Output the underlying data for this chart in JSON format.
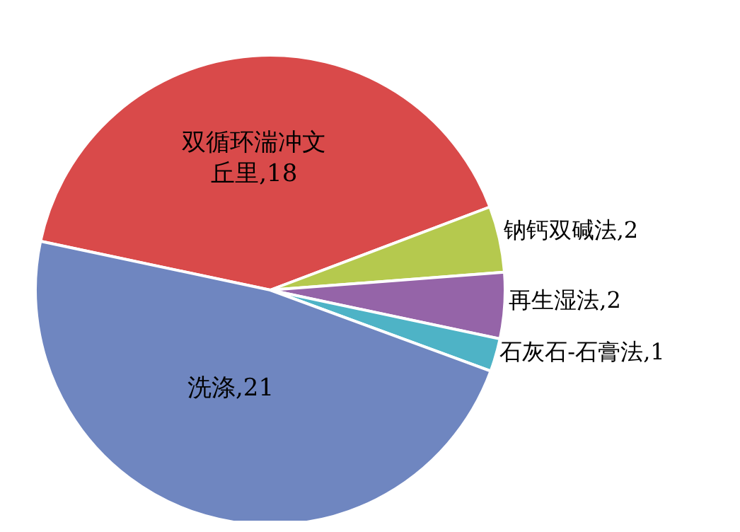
{
  "chart_data": {
    "type": "pie",
    "categories": [
      "双循环湍冲文丘里",
      "钠钙双碱法",
      "再生湿法",
      "石灰石-石膏法",
      "洗涤"
    ],
    "values": [
      18,
      2,
      2,
      1,
      21
    ],
    "value_labels": [
      ",18",
      ",2",
      ",2",
      ",1",
      ",21"
    ],
    "colors": [
      "#d94a4a",
      "#b5c94e",
      "#9564a8",
      "#4eb3c6",
      "#6f86c0"
    ]
  }
}
